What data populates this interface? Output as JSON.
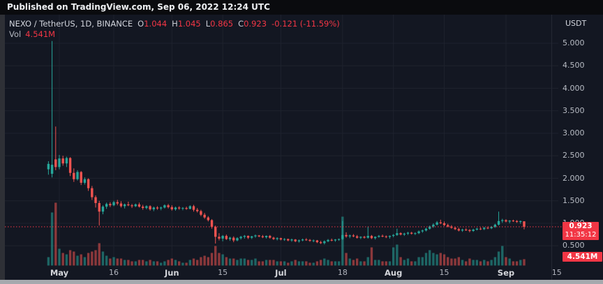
{
  "published_bar": {
    "text": "Published on TradingView.com, Sep 06, 2022 12:24 UTC"
  },
  "legend": {
    "symbol": "NEXO / TetherUS, 1D, BINANCE",
    "ohlc": [
      {
        "label": "O",
        "value": "1.044"
      },
      {
        "label": "H",
        "value": "1.045"
      },
      {
        "label": "L",
        "value": "0.865"
      },
      {
        "label": "C",
        "value": "0.923"
      }
    ],
    "change": "-0.121 (-11.59%)",
    "vol_label": "Vol",
    "vol_value": "4.541M"
  },
  "price_axis": {
    "unit": "USDT",
    "ticks": [
      {
        "label": "5.000",
        "value": 5.0
      },
      {
        "label": "4.500",
        "value": 4.5
      },
      {
        "label": "4.000",
        "value": 4.0
      },
      {
        "label": "3.500",
        "value": 3.5
      },
      {
        "label": "3.000",
        "value": 3.0
      },
      {
        "label": "2.500",
        "value": 2.5
      },
      {
        "label": "2.000",
        "value": 2.0
      },
      {
        "label": "1.500",
        "value": 1.5
      },
      {
        "label": "1.000",
        "value": 1.0
      },
      {
        "label": "0.500",
        "value": 0.5
      }
    ],
    "price_label": {
      "price": "0.923",
      "countdown": "11:35:12"
    },
    "volume_label": "4.541M"
  },
  "time_axis": {
    "ticks": [
      {
        "label": "May",
        "day": 0,
        "major": true
      },
      {
        "label": "16",
        "day": 15,
        "major": false
      },
      {
        "label": "Jun",
        "day": 31,
        "major": true
      },
      {
        "label": "15",
        "day": 45,
        "major": false
      },
      {
        "label": "Jul",
        "day": 61,
        "major": true
      },
      {
        "label": "18",
        "day": 78,
        "major": false
      },
      {
        "label": "Aug",
        "day": 92,
        "major": true
      },
      {
        "label": "15",
        "day": 106,
        "major": false
      },
      {
        "label": "Sep",
        "day": 123,
        "major": true
      },
      {
        "label": "15",
        "day": 137,
        "major": false
      }
    ]
  },
  "colors": {
    "accent_red": "#f23645",
    "candle_up": "#26a69a",
    "candle_down": "#ef5350",
    "volume_up": "rgba(38,166,154,0.55)",
    "volume_down": "rgba(239,83,80,0.55)",
    "grid": "#1e222d",
    "axis_border": "#242833",
    "panel_bg": "#131722"
  },
  "chart_data": {
    "type": "candlestick+volume",
    "title": "NEXO / TetherUS, 1D, BINANCE",
    "symbol": "NEXO/USDT",
    "interval": "1D",
    "exchange": "BINANCE",
    "unit": "USDT",
    "start_date": "2022-04-28",
    "end_date": "2022-09-06",
    "ylim": [
      0.3,
      5.3
    ],
    "grid": true,
    "last_bar": {
      "open": 1.044,
      "high": 1.045,
      "low": 0.865,
      "close": 0.923,
      "change": -0.121,
      "change_pct": -11.59,
      "volume_m": 4.541,
      "countdown": "11:35:12"
    },
    "current_price_line": 0.923,
    "volume_unit": "millions",
    "candles_format": [
      "open",
      "high",
      "low",
      "close",
      "volume_m"
    ],
    "candles": [
      [
        2.2,
        2.38,
        2.08,
        2.32,
        6
      ],
      [
        2.1,
        5.05,
        2.02,
        2.3,
        38
      ],
      [
        2.42,
        3.15,
        2.18,
        2.25,
        45
      ],
      [
        2.25,
        2.52,
        2.2,
        2.44,
        12
      ],
      [
        2.44,
        2.5,
        2.28,
        2.33,
        9
      ],
      [
        2.33,
        2.48,
        2.25,
        2.45,
        8
      ],
      [
        2.45,
        2.47,
        2.05,
        2.12,
        11
      ],
      [
        2.12,
        2.22,
        1.92,
        1.98,
        10
      ],
      [
        1.98,
        2.18,
        1.95,
        2.14,
        7
      ],
      [
        2.14,
        2.16,
        1.85,
        1.9,
        8
      ],
      [
        1.9,
        2.02,
        1.86,
        1.98,
        6
      ],
      [
        1.98,
        2.0,
        1.72,
        1.78,
        9
      ],
      [
        1.78,
        1.83,
        1.52,
        1.58,
        10
      ],
      [
        1.58,
        1.62,
        1.35,
        1.45,
        11
      ],
      [
        1.45,
        1.5,
        0.95,
        1.26,
        16
      ],
      [
        1.26,
        1.4,
        1.2,
        1.37,
        10
      ],
      [
        1.37,
        1.46,
        1.32,
        1.43,
        7
      ],
      [
        1.43,
        1.47,
        1.36,
        1.4,
        5
      ],
      [
        1.4,
        1.5,
        1.38,
        1.47,
        6
      ],
      [
        1.47,
        1.52,
        1.4,
        1.44,
        5
      ],
      [
        1.44,
        1.49,
        1.35,
        1.38,
        5
      ],
      [
        1.38,
        1.44,
        1.33,
        1.42,
        4
      ],
      [
        1.42,
        1.48,
        1.38,
        1.4,
        4
      ],
      [
        1.4,
        1.43,
        1.34,
        1.38,
        3
      ],
      [
        1.38,
        1.44,
        1.36,
        1.42,
        3
      ],
      [
        1.42,
        1.46,
        1.35,
        1.37,
        4
      ],
      [
        1.37,
        1.41,
        1.3,
        1.34,
        4
      ],
      [
        1.34,
        1.4,
        1.31,
        1.38,
        3
      ],
      [
        1.38,
        1.4,
        1.28,
        1.31,
        4
      ],
      [
        1.31,
        1.37,
        1.27,
        1.35,
        3
      ],
      [
        1.35,
        1.38,
        1.3,
        1.33,
        3
      ],
      [
        1.33,
        1.37,
        1.29,
        1.35,
        2
      ],
      [
        1.35,
        1.42,
        1.33,
        1.4,
        3
      ],
      [
        1.4,
        1.43,
        1.33,
        1.36,
        4
      ],
      [
        1.36,
        1.4,
        1.28,
        1.31,
        5
      ],
      [
        1.31,
        1.37,
        1.28,
        1.35,
        4
      ],
      [
        1.35,
        1.38,
        1.3,
        1.33,
        3
      ],
      [
        1.33,
        1.36,
        1.29,
        1.34,
        2
      ],
      [
        1.34,
        1.37,
        1.3,
        1.32,
        2
      ],
      [
        1.32,
        1.4,
        1.31,
        1.38,
        4
      ],
      [
        1.38,
        1.41,
        1.26,
        1.3,
        5
      ],
      [
        1.3,
        1.34,
        1.24,
        1.27,
        4
      ],
      [
        1.27,
        1.3,
        1.16,
        1.19,
        6
      ],
      [
        1.19,
        1.23,
        1.1,
        1.13,
        7
      ],
      [
        1.13,
        1.16,
        1.04,
        1.07,
        6
      ],
      [
        1.07,
        1.09,
        0.88,
        0.92,
        9
      ],
      [
        0.92,
        0.95,
        0.55,
        0.7,
        14
      ],
      [
        0.7,
        0.78,
        0.62,
        0.66,
        9
      ],
      [
        0.66,
        0.74,
        0.6,
        0.72,
        8
      ],
      [
        0.72,
        0.75,
        0.63,
        0.65,
        6
      ],
      [
        0.65,
        0.7,
        0.61,
        0.68,
        5
      ],
      [
        0.68,
        0.71,
        0.58,
        0.62,
        5
      ],
      [
        0.62,
        0.69,
        0.6,
        0.67,
        4
      ],
      [
        0.67,
        0.72,
        0.64,
        0.7,
        5
      ],
      [
        0.7,
        0.74,
        0.66,
        0.72,
        5
      ],
      [
        0.72,
        0.73,
        0.65,
        0.68,
        4
      ],
      [
        0.68,
        0.72,
        0.65,
        0.71,
        4
      ],
      [
        0.71,
        0.75,
        0.68,
        0.73,
        5
      ],
      [
        0.73,
        0.74,
        0.69,
        0.71,
        3
      ],
      [
        0.71,
        0.74,
        0.67,
        0.69,
        3
      ],
      [
        0.69,
        0.73,
        0.66,
        0.72,
        4
      ],
      [
        0.72,
        0.74,
        0.66,
        0.68,
        4
      ],
      [
        0.68,
        0.7,
        0.63,
        0.65,
        4
      ],
      [
        0.65,
        0.69,
        0.62,
        0.67,
        3
      ],
      [
        0.67,
        0.68,
        0.62,
        0.64,
        3
      ],
      [
        0.64,
        0.67,
        0.61,
        0.65,
        3
      ],
      [
        0.65,
        0.66,
        0.6,
        0.62,
        2
      ],
      [
        0.62,
        0.66,
        0.59,
        0.64,
        3
      ],
      [
        0.64,
        0.65,
        0.58,
        0.6,
        4
      ],
      [
        0.6,
        0.64,
        0.57,
        0.62,
        3
      ],
      [
        0.62,
        0.66,
        0.6,
        0.64,
        3
      ],
      [
        0.64,
        0.67,
        0.61,
        0.63,
        3
      ],
      [
        0.63,
        0.65,
        0.59,
        0.61,
        2
      ],
      [
        0.61,
        0.64,
        0.58,
        0.62,
        2
      ],
      [
        0.62,
        0.63,
        0.56,
        0.58,
        3
      ],
      [
        0.58,
        0.61,
        0.54,
        0.56,
        4
      ],
      [
        0.56,
        0.62,
        0.53,
        0.6,
        5
      ],
      [
        0.6,
        0.65,
        0.58,
        0.63,
        4
      ],
      [
        0.63,
        0.66,
        0.6,
        0.62,
        3
      ],
      [
        0.62,
        0.65,
        0.59,
        0.64,
        3
      ],
      [
        0.64,
        0.66,
        0.61,
        0.65,
        3
      ],
      [
        0.65,
        1.05,
        0.63,
        0.74,
        35
      ],
      [
        0.74,
        0.8,
        0.68,
        0.71,
        9
      ],
      [
        0.71,
        0.75,
        0.67,
        0.73,
        5
      ],
      [
        0.73,
        0.76,
        0.69,
        0.71,
        4
      ],
      [
        0.71,
        0.74,
        0.66,
        0.68,
        5
      ],
      [
        0.68,
        0.71,
        0.65,
        0.7,
        3
      ],
      [
        0.7,
        0.72,
        0.66,
        0.68,
        3
      ],
      [
        0.68,
        0.93,
        0.66,
        0.72,
        6
      ],
      [
        0.72,
        0.74,
        0.65,
        0.67,
        13
      ],
      [
        0.67,
        0.71,
        0.64,
        0.7,
        4
      ],
      [
        0.7,
        0.74,
        0.68,
        0.72,
        4
      ],
      [
        0.72,
        0.75,
        0.69,
        0.71,
        3
      ],
      [
        0.71,
        0.73,
        0.67,
        0.7,
        3
      ],
      [
        0.7,
        0.73,
        0.66,
        0.72,
        3
      ],
      [
        0.72,
        0.76,
        0.69,
        0.74,
        13
      ],
      [
        0.74,
        0.88,
        0.72,
        0.78,
        15
      ],
      [
        0.78,
        0.8,
        0.73,
        0.75,
        6
      ],
      [
        0.75,
        0.79,
        0.72,
        0.77,
        4
      ],
      [
        0.77,
        0.81,
        0.74,
        0.79,
        5
      ],
      [
        0.79,
        0.81,
        0.75,
        0.77,
        3
      ],
      [
        0.77,
        0.8,
        0.74,
        0.78,
        3
      ],
      [
        0.78,
        0.84,
        0.76,
        0.82,
        6
      ],
      [
        0.82,
        0.86,
        0.79,
        0.84,
        6
      ],
      [
        0.84,
        0.9,
        0.82,
        0.88,
        9
      ],
      [
        0.88,
        0.95,
        0.86,
        0.93,
        11
      ],
      [
        0.93,
        1.0,
        0.9,
        0.97,
        9
      ],
      [
        0.97,
        1.05,
        0.95,
        1.02,
        8
      ],
      [
        1.02,
        1.08,
        0.98,
        1.0,
        9
      ],
      [
        1.0,
        1.04,
        0.94,
        0.96,
        8
      ],
      [
        0.96,
        0.99,
        0.91,
        0.93,
        6
      ],
      [
        0.93,
        0.96,
        0.88,
        0.9,
        5
      ],
      [
        0.9,
        0.93,
        0.85,
        0.87,
        5
      ],
      [
        0.87,
        0.9,
        0.82,
        0.84,
        6
      ],
      [
        0.84,
        0.88,
        0.81,
        0.86,
        4
      ],
      [
        0.86,
        0.89,
        0.83,
        0.85,
        3
      ],
      [
        0.85,
        0.87,
        0.8,
        0.83,
        5
      ],
      [
        0.83,
        0.88,
        0.81,
        0.86,
        4
      ],
      [
        0.86,
        0.9,
        0.84,
        0.88,
        4
      ],
      [
        0.88,
        0.91,
        0.85,
        0.87,
        3
      ],
      [
        0.87,
        0.92,
        0.85,
        0.9,
        4
      ],
      [
        0.9,
        0.93,
        0.87,
        0.89,
        3
      ],
      [
        0.89,
        0.94,
        0.87,
        0.92,
        4
      ],
      [
        0.92,
        0.99,
        0.9,
        0.97,
        6
      ],
      [
        0.97,
        1.26,
        0.95,
        1.05,
        10
      ],
      [
        1.05,
        1.1,
        1.01,
        1.07,
        14
      ],
      [
        1.07,
        1.09,
        1.02,
        1.04,
        6
      ],
      [
        1.04,
        1.07,
        1.0,
        1.06,
        5
      ],
      [
        1.06,
        1.08,
        1.03,
        1.05,
        3
      ],
      [
        1.05,
        1.07,
        1.01,
        1.03,
        3
      ],
      [
        1.03,
        1.06,
        0.99,
        1.05,
        4
      ],
      [
        1.044,
        1.045,
        0.865,
        0.923,
        4.541
      ]
    ]
  }
}
